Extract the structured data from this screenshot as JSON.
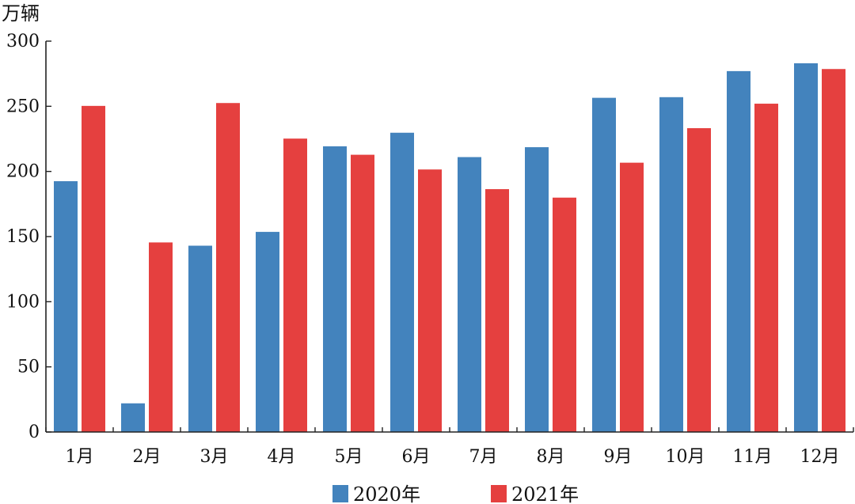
{
  "chart_data": {
    "type": "bar",
    "ylabel": "万辆",
    "ylim": [
      0,
      300
    ],
    "yticks": [
      0,
      50,
      100,
      150,
      200,
      250,
      300
    ],
    "categories": [
      "1月",
      "2月",
      "3月",
      "4月",
      "5月",
      "6月",
      "7月",
      "8月",
      "9月",
      "10月",
      "11月",
      "12月"
    ],
    "series": [
      {
        "name": "2020年",
        "color": "#4383BD",
        "values": [
          192.5,
          22,
          143,
          153.6,
          219.3,
          229.7,
          211,
          218.6,
          256.5,
          257,
          277,
          283
        ]
      },
      {
        "name": "2021年",
        "color": "#E5403F",
        "values": [
          250.3,
          145.5,
          252.5,
          225.2,
          212.8,
          201.5,
          186.4,
          179.9,
          206.7,
          233.2,
          252,
          278.6
        ]
      }
    ],
    "legend": "bottom",
    "grid": false
  }
}
